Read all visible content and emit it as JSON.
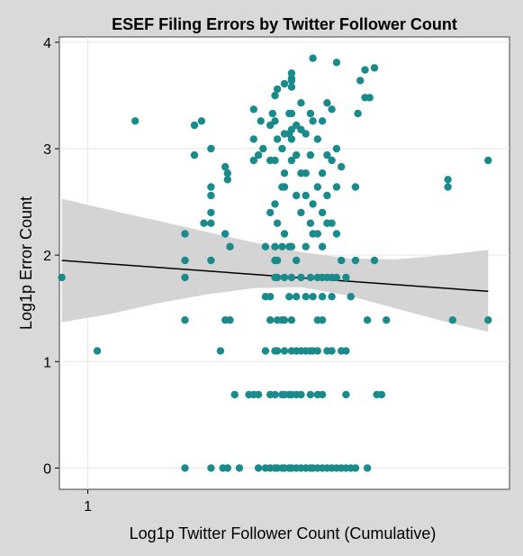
{
  "chart_data": {
    "type": "scatter",
    "title": "ESEF Filing Errors by Twitter Follower Count",
    "xlabel": "Log1p Twitter Follower Count (Cumulative)",
    "ylabel": "Log1p Error Count",
    "xlim": [
      0.4,
      9.9
    ],
    "ylim": [
      -0.2,
      4.05
    ],
    "x_ticks": [
      {
        "value": 1,
        "label": "1"
      }
    ],
    "y_ticks": [
      {
        "value": 0,
        "label": "0"
      },
      {
        "value": 1,
        "label": "1"
      },
      {
        "value": 2,
        "label": "2"
      },
      {
        "value": 3,
        "label": "3"
      },
      {
        "value": 4,
        "label": "4"
      }
    ],
    "grid": true,
    "legend": "none",
    "point_color": "#1a8a8a",
    "fit_line": {
      "x": [
        0.45,
        9.45
      ],
      "y": [
        1.95,
        1.66
      ],
      "color": "#000000"
    },
    "confidence_band": {
      "x": [
        0.45,
        1.5,
        2.5,
        3.5,
        4.5,
        5.5,
        6.5,
        7.5,
        8.5,
        9.45
      ],
      "upper": [
        2.53,
        2.42,
        2.32,
        2.22,
        2.12,
        2.03,
        1.97,
        1.96,
        2.0,
        2.05
      ],
      "lower": [
        1.37,
        1.45,
        1.55,
        1.63,
        1.69,
        1.7,
        1.62,
        1.5,
        1.38,
        1.28
      ],
      "color": "#d4d4d4"
    },
    "points": [
      [
        0.45,
        1.79
      ],
      [
        1.2,
        1.1
      ],
      [
        2.0,
        3.26
      ],
      [
        3.05,
        2.2
      ],
      [
        3.05,
        1.95
      ],
      [
        3.05,
        1.79
      ],
      [
        3.05,
        1.39
      ],
      [
        3.05,
        0.0
      ],
      [
        3.25,
        3.22
      ],
      [
        3.25,
        2.94
      ],
      [
        3.4,
        3.26
      ],
      [
        3.45,
        2.3
      ],
      [
        3.6,
        3.0
      ],
      [
        3.6,
        2.64
      ],
      [
        3.6,
        2.56
      ],
      [
        3.6,
        2.4
      ],
      [
        3.6,
        2.3
      ],
      [
        3.6,
        1.95
      ],
      [
        3.6,
        0.0
      ],
      [
        3.8,
        1.1
      ],
      [
        3.85,
        0.0
      ],
      [
        3.9,
        2.83
      ],
      [
        3.9,
        2.2
      ],
      [
        3.9,
        1.39
      ],
      [
        3.95,
        2.77
      ],
      [
        3.95,
        2.71
      ],
      [
        3.95,
        0.0
      ],
      [
        4.0,
        2.08
      ],
      [
        4.0,
        1.39
      ],
      [
        4.1,
        0.69
      ],
      [
        4.2,
        0.0
      ],
      [
        4.4,
        0.69
      ],
      [
        4.5,
        3.37
      ],
      [
        4.5,
        3.09
      ],
      [
        4.5,
        2.89
      ],
      [
        4.5,
        0.69
      ],
      [
        4.6,
        2.94
      ],
      [
        4.6,
        0.69
      ],
      [
        4.6,
        0.0
      ],
      [
        4.65,
        3.26
      ],
      [
        4.7,
        3.0
      ],
      [
        4.75,
        2.08
      ],
      [
        4.75,
        1.61
      ],
      [
        4.75,
        1.1
      ],
      [
        4.75,
        0.0
      ],
      [
        4.85,
        3.22
      ],
      [
        4.85,
        2.89
      ],
      [
        4.85,
        2.4
      ],
      [
        4.85,
        1.61
      ],
      [
        4.85,
        1.39
      ],
      [
        4.85,
        0.69
      ],
      [
        4.85,
        0.0
      ],
      [
        4.9,
        3.33
      ],
      [
        4.95,
        3.5
      ],
      [
        4.95,
        3.26
      ],
      [
        4.95,
        2.89
      ],
      [
        4.95,
        2.48
      ],
      [
        4.95,
        2.08
      ],
      [
        4.95,
        1.95
      ],
      [
        4.95,
        1.79
      ],
      [
        4.95,
        1.1
      ],
      [
        4.95,
        0.69
      ],
      [
        4.95,
        0.0
      ],
      [
        5.0,
        3.56
      ],
      [
        5.0,
        3.09
      ],
      [
        5.0,
        2.3
      ],
      [
        5.0,
        1.95
      ],
      [
        5.0,
        1.79
      ],
      [
        5.0,
        1.39
      ],
      [
        5.0,
        1.1
      ],
      [
        5.0,
        0.0
      ],
      [
        5.1,
        3.0
      ],
      [
        5.1,
        2.64
      ],
      [
        5.1,
        2.08
      ],
      [
        5.1,
        1.39
      ],
      [
        5.1,
        0.69
      ],
      [
        5.1,
        0.0
      ],
      [
        5.15,
        3.61
      ],
      [
        5.15,
        3.14
      ],
      [
        5.15,
        2.77
      ],
      [
        5.15,
        2.64
      ],
      [
        5.15,
        2.2
      ],
      [
        5.15,
        1.79
      ],
      [
        5.15,
        1.39
      ],
      [
        5.15,
        1.1
      ],
      [
        5.15,
        0.69
      ],
      [
        5.15,
        0.0
      ],
      [
        5.25,
        3.33
      ],
      [
        5.25,
        3.14
      ],
      [
        5.25,
        2.08
      ],
      [
        5.25,
        1.61
      ],
      [
        5.25,
        0.69
      ],
      [
        5.25,
        0.0
      ],
      [
        5.3,
        3.71
      ],
      [
        5.3,
        3.66
      ],
      [
        5.3,
        3.64
      ],
      [
        5.3,
        3.58
      ],
      [
        5.3,
        3.33
      ],
      [
        5.3,
        3.18
      ],
      [
        5.3,
        3.09
      ],
      [
        5.3,
        2.89
      ],
      [
        5.3,
        2.08
      ],
      [
        5.3,
        1.79
      ],
      [
        5.3,
        1.39
      ],
      [
        5.3,
        1.1
      ],
      [
        5.3,
        0.69
      ],
      [
        5.3,
        0.0
      ],
      [
        5.4,
        3.22
      ],
      [
        5.4,
        2.94
      ],
      [
        5.4,
        2.56
      ],
      [
        5.4,
        1.95
      ],
      [
        5.4,
        1.61
      ],
      [
        5.4,
        1.1
      ],
      [
        5.4,
        0.69
      ],
      [
        5.4,
        0.0
      ],
      [
        5.5,
        3.43
      ],
      [
        5.5,
        3.18
      ],
      [
        5.5,
        2.77
      ],
      [
        5.5,
        2.4
      ],
      [
        5.5,
        1.79
      ],
      [
        5.5,
        1.1
      ],
      [
        5.5,
        0.69
      ],
      [
        5.5,
        0.0
      ],
      [
        5.6,
        3.14
      ],
      [
        5.6,
        2.77
      ],
      [
        5.6,
        2.56
      ],
      [
        5.6,
        2.08
      ],
      [
        5.6,
        1.61
      ],
      [
        5.6,
        1.1
      ],
      [
        5.6,
        0.0
      ],
      [
        5.7,
        3.33
      ],
      [
        5.7,
        2.94
      ],
      [
        5.7,
        2.3
      ],
      [
        5.7,
        1.79
      ],
      [
        5.7,
        1.1
      ],
      [
        5.7,
        0.69
      ],
      [
        5.7,
        0.0
      ],
      [
        5.75,
        3.85
      ],
      [
        5.75,
        3.26
      ],
      [
        5.75,
        2.48
      ],
      [
        5.75,
        2.2
      ],
      [
        5.75,
        1.61
      ],
      [
        5.75,
        1.1
      ],
      [
        5.75,
        0.0
      ],
      [
        5.85,
        3.09
      ],
      [
        5.85,
        2.64
      ],
      [
        5.85,
        2.2
      ],
      [
        5.85,
        1.79
      ],
      [
        5.85,
        1.39
      ],
      [
        5.85,
        1.1
      ],
      [
        5.85,
        0.69
      ],
      [
        5.85,
        0.0
      ],
      [
        5.95,
        3.26
      ],
      [
        5.95,
        2.77
      ],
      [
        5.95,
        2.4
      ],
      [
        5.95,
        2.08
      ],
      [
        5.95,
        1.79
      ],
      [
        5.95,
        1.61
      ],
      [
        5.95,
        1.39
      ],
      [
        5.95,
        0.69
      ],
      [
        5.95,
        0.0
      ],
      [
        6.05,
        3.43
      ],
      [
        6.05,
        2.94
      ],
      [
        6.05,
        2.56
      ],
      [
        6.05,
        2.3
      ],
      [
        6.05,
        1.79
      ],
      [
        6.05,
        1.1
      ],
      [
        6.05,
        0.0
      ],
      [
        6.15,
        3.37
      ],
      [
        6.15,
        2.89
      ],
      [
        6.15,
        2.3
      ],
      [
        6.15,
        1.79
      ],
      [
        6.15,
        1.61
      ],
      [
        6.15,
        1.1
      ],
      [
        6.15,
        0.0
      ],
      [
        6.25,
        3.81
      ],
      [
        6.25,
        3.0
      ],
      [
        6.25,
        2.64
      ],
      [
        6.25,
        2.2
      ],
      [
        6.25,
        1.79
      ],
      [
        6.25,
        0.0
      ],
      [
        6.35,
        2.83
      ],
      [
        6.35,
        1.95
      ],
      [
        6.35,
        1.1
      ],
      [
        6.35,
        0.0
      ],
      [
        6.45,
        1.79
      ],
      [
        6.45,
        1.1
      ],
      [
        6.45,
        0.69
      ],
      [
        6.45,
        0.0
      ],
      [
        6.55,
        1.61
      ],
      [
        6.55,
        0.0
      ],
      [
        6.65,
        2.64
      ],
      [
        6.65,
        1.95
      ],
      [
        6.65,
        0.0
      ],
      [
        6.7,
        3.33
      ],
      [
        6.75,
        3.64
      ],
      [
        6.85,
        3.48
      ],
      [
        6.85,
        3.74
      ],
      [
        6.9,
        1.39
      ],
      [
        6.9,
        0.0
      ],
      [
        6.95,
        3.48
      ],
      [
        7.05,
        3.76
      ],
      [
        7.05,
        1.95
      ],
      [
        7.1,
        0.69
      ],
      [
        7.2,
        0.69
      ],
      [
        7.3,
        1.39
      ],
      [
        8.6,
        2.71
      ],
      [
        8.6,
        2.64
      ],
      [
        8.7,
        1.39
      ],
      [
        9.45,
        2.89
      ],
      [
        9.45,
        1.39
      ]
    ]
  }
}
